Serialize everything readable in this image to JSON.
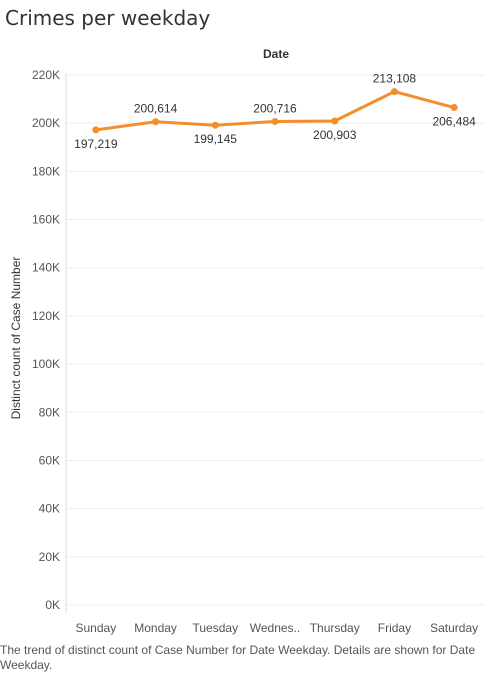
{
  "sheet": {
    "title": "Crimes per weekday",
    "caption": "The trend of distinct count of Case Number for Date Weekday.  Details are shown for Date Weekday."
  },
  "colors": {
    "line": "#f28e2b",
    "grid": "#eeeeee",
    "text": "#333333",
    "label": "#555555"
  },
  "chart_data": {
    "type": "line",
    "title": "Crimes per weekday",
    "header": "Date",
    "xlabel": "",
    "ylabel": "Distinct count of Case Number",
    "categories": [
      "Sunday",
      "Monday",
      "Tuesday",
      "Wednesday",
      "Thursday",
      "Friday",
      "Saturday"
    ],
    "tick_labels_x": [
      "Sunday",
      "Monday",
      "Tuesday",
      "Wednes..",
      "Thursday",
      "Friday",
      "Saturday"
    ],
    "series": [
      {
        "values": [
          197219,
          200614,
          199145,
          200716,
          200903,
          213108,
          206484
        ]
      }
    ],
    "data_labels": [
      "197,219",
      "200,614",
      "199,145",
      "200,716",
      "200,903",
      "213,108",
      "206,484"
    ],
    "ylim": [
      0,
      220000
    ],
    "yticks": [
      0,
      20000,
      40000,
      60000,
      80000,
      100000,
      120000,
      140000,
      160000,
      180000,
      200000,
      220000
    ],
    "ytick_labels": [
      "0K",
      "20K",
      "40K",
      "60K",
      "80K",
      "100K",
      "120K",
      "140K",
      "160K",
      "180K",
      "200K",
      "220K"
    ],
    "grid": true,
    "legend": "none"
  }
}
